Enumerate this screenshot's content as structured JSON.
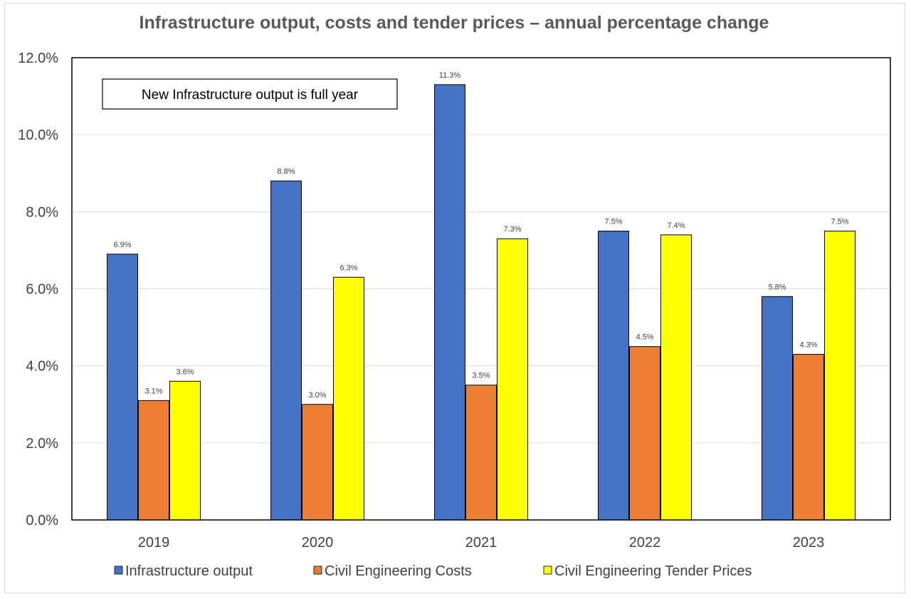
{
  "chart_data": {
    "type": "bar",
    "title": "Infrastructure output, costs and tender prices – annual percentage change",
    "xlabel": "",
    "ylabel": "",
    "categories": [
      "2019",
      "2020",
      "2021",
      "2022",
      "2023"
    ],
    "ylim": [
      0,
      12
    ],
    "yticks": [
      0,
      2,
      4,
      6,
      8,
      10,
      12
    ],
    "ytick_labels": [
      "0.0%",
      "2.0%",
      "4.0%",
      "6.0%",
      "8.0%",
      "10.0%",
      "12.0%"
    ],
    "grid": true,
    "legend_position": "bottom",
    "series": [
      {
        "name": "Infrastructure output",
        "color": "#4472c4",
        "values": [
          6.9,
          8.8,
          11.3,
          7.5,
          5.8
        ],
        "labels": [
          "6.9%",
          "8.8%",
          "11.3%",
          "7.5%",
          "5.8%"
        ]
      },
      {
        "name": "Civil Engineering Costs",
        "color": "#ed7d31",
        "values": [
          3.1,
          3.0,
          3.5,
          4.5,
          4.3
        ],
        "labels": [
          "3.1%",
          "3.0%",
          "3.5%",
          "4.5%",
          "4.3%"
        ]
      },
      {
        "name": "Civil Engineering Tender Prices",
        "color": "#ffff00",
        "values": [
          3.6,
          6.3,
          7.3,
          7.4,
          7.5
        ],
        "labels": [
          "3.6%",
          "6.3%",
          "7.3%",
          "7.4%",
          "7.5%"
        ]
      }
    ],
    "annotation": "New Infrastructure output is full year"
  }
}
